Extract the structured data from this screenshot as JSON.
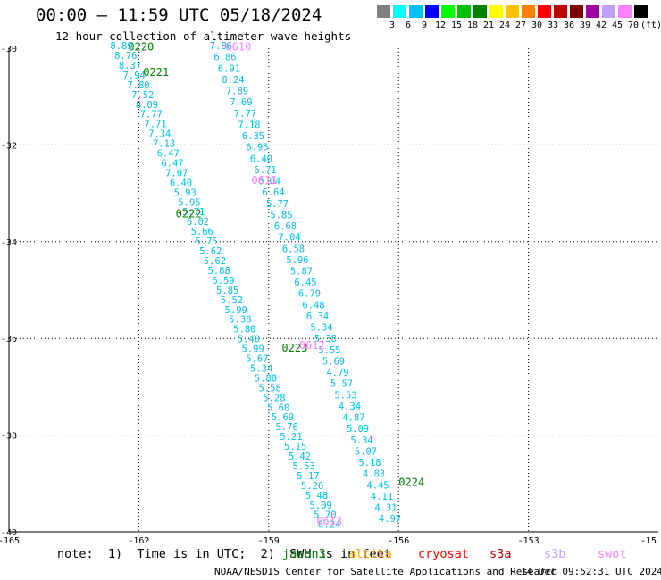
{
  "header": {
    "title": "00:00 – 11:59 UTC 05/18/2024",
    "subtitle": "12 hour collection of altimeter wave heights"
  },
  "color_scale": {
    "labels": [
      "3",
      "6",
      "9",
      "12",
      "15",
      "18",
      "21",
      "24",
      "27",
      "30",
      "33",
      "36",
      "39",
      "42",
      "45",
      "70",
      "(ft)"
    ],
    "colors": [
      "#808080",
      "#00ffff",
      "#00c0ff",
      "#0000ff",
      "#00ff00",
      "#00c000",
      "#008000",
      "#ffff00",
      "#ffc000",
      "#ff8000",
      "#ff0000",
      "#c00000",
      "#800000",
      "#a000a0",
      "#c0a0ff",
      "#ff80ff",
      "#000000"
    ]
  },
  "axes": {
    "lon_ticks": [
      "-165",
      "-162",
      "-159",
      "-156",
      "-153",
      "-15"
    ],
    "lat_ticks": [
      "-30",
      "-32",
      "-34",
      "-36",
      "-38",
      "-40"
    ]
  },
  "track_labels": [
    {
      "text": "0220",
      "color": "#008000",
      "lon": -161.95,
      "lat": -30.05
    },
    {
      "text": "0221",
      "color": "#008000",
      "lon": -161.6,
      "lat": -30.57
    },
    {
      "text": "0222",
      "color": "#008000",
      "lon": -160.85,
      "lat": -33.5
    },
    {
      "text": "0223",
      "color": "#008000",
      "lon": -158.4,
      "lat": -36.27
    },
    {
      "text": "0224",
      "color": "#008000",
      "lon": -155.7,
      "lat": -39.05
    },
    {
      "text": "0610",
      "color": "#ff80ff",
      "lon": -159.7,
      "lat": -30.05
    },
    {
      "text": "0611",
      "color": "#ff80ff",
      "lon": -159.1,
      "lat": -32.8
    },
    {
      "text": "0612",
      "color": "#ff80ff",
      "lon": -158.0,
      "lat": -36.22
    },
    {
      "text": "0613",
      "color": "#ff80ff",
      "lon": -157.6,
      "lat": -39.85
    }
  ],
  "track_a": {
    "color": "#00c0e8",
    "values": [
      "8.89",
      "8.76",
      "8.37",
      "7.94",
      "7.80",
      "7.52",
      "8.09",
      "7.77",
      "7.71",
      "7.34",
      "7.13",
      "6.47",
      "6.47",
      "7.07",
      "6.40",
      "5.93",
      "5.95",
      "5.71",
      "6.02",
      "5.66",
      "5.75",
      "5.62",
      "5.62",
      "5.88",
      "6.59",
      "5.85",
      "5.52",
      "5.99",
      "5.38",
      "5.80",
      "5.40",
      "5.99",
      "5.67",
      "5.34",
      "5.80",
      "5.58",
      "5.28",
      "5.60",
      "5.69",
      "5.76",
      "5.21",
      "5.15",
      "5.42",
      "5.53",
      "5.17",
      "5.26",
      "5.48",
      "5.09",
      "5.70",
      "6.24"
    ]
  },
  "track_b": {
    "color": "#00c0e8",
    "values": [
      "7.86",
      "6.86",
      "6.91",
      "8.24",
      "7.89",
      "7.69",
      "7.77",
      "7.18",
      "6.35",
      "6.95",
      "6.40",
      "6.71",
      "6.04",
      "6.64",
      "5.77",
      "5.85",
      "6.68",
      "7.04",
      "6.58",
      "5.96",
      "5.87",
      "6.45",
      "6.79",
      "6.48",
      "6.34",
      "5.34",
      "5.38",
      "5.55",
      "5.69",
      "4.79",
      "5.57",
      "5.53",
      "4.34",
      "4.87",
      "5.09",
      "5.34",
      "5.07",
      "5.18",
      "4.83",
      "4.45",
      "4.11",
      "4.31",
      "4.97"
    ]
  },
  "legend": {
    "note": "note:  1)  Time is in UTC;  2)  SWH is in feet",
    "items": [
      {
        "label": "jason3",
        "color": "#008000"
      },
      {
        "label": "altika",
        "color": "#ffa000"
      },
      {
        "label": "cryosat",
        "color": "#ff0000"
      },
      {
        "label": "s3a",
        "color": "#c00000"
      },
      {
        "label": "s3b",
        "color": "#c0a0ff"
      },
      {
        "label": "swot",
        "color": "#ff80ff"
      }
    ]
  },
  "footer": {
    "credit": "NOAA/NESDIS Center for Satellite Applications and Research",
    "timestamp": "14 Dec 09:52:31 UTC 2024"
  }
}
